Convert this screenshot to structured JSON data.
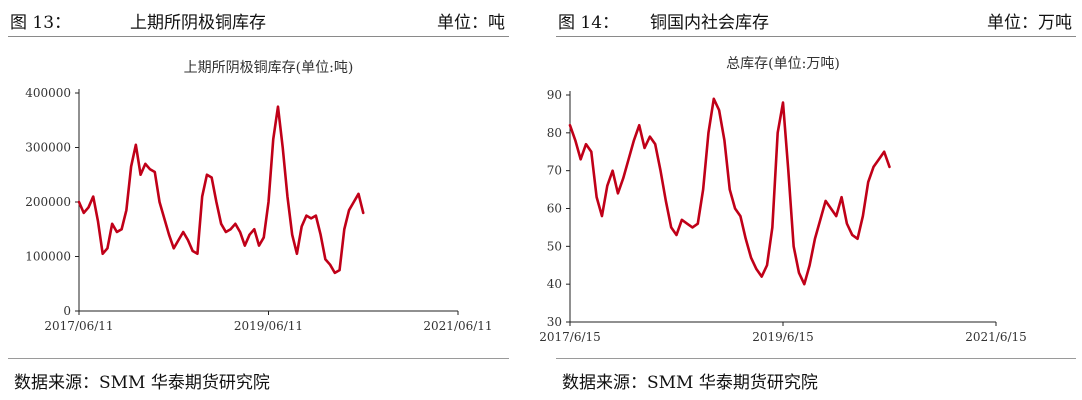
{
  "left": {
    "fig_label": "图 13：",
    "fig_title": "上期所阴极铜库存",
    "unit_label": "单位：吨",
    "source": "数据来源：SMM 华泰期货研究院",
    "chart_data": {
      "type": "line",
      "title": "上期所阴极铜库存(单位:吨)",
      "xlabel": "",
      "ylabel": "",
      "ylim": [
        0,
        400000
      ],
      "yticks": [
        0,
        100000,
        200000,
        300000,
        400000
      ],
      "ytick_labels": [
        "0",
        "100000",
        "200000",
        "300000",
        "400000"
      ],
      "xlim": [
        0,
        4
      ],
      "xticks": [
        0,
        2,
        4
      ],
      "xtick_labels": [
        "2017/06/11",
        "2019/06/11",
        "2021/06/11"
      ],
      "series": [
        {
          "name": "上期所阴极铜库存",
          "color": "#c00018",
          "x": [
            0,
            0.05,
            0.1,
            0.15,
            0.2,
            0.25,
            0.3,
            0.35,
            0.4,
            0.45,
            0.5,
            0.55,
            0.6,
            0.65,
            0.7,
            0.75,
            0.8,
            0.85,
            0.9,
            0.95,
            1.0,
            1.05,
            1.1,
            1.15,
            1.2,
            1.25,
            1.3,
            1.35,
            1.4,
            1.45,
            1.5,
            1.55,
            1.6,
            1.65,
            1.7,
            1.75,
            1.8,
            1.85,
            1.9,
            1.95,
            2.0,
            2.05,
            2.1,
            2.15,
            2.2,
            2.25,
            2.3,
            2.35,
            2.4,
            2.45,
            2.5,
            2.55,
            2.6,
            2.65,
            2.7,
            2.75,
            2.8,
            2.85,
            2.9,
            2.95,
            3.0,
            3.05,
            3.1,
            3.15,
            3.2,
            3.25,
            3.3,
            3.35,
            3.4,
            3.45,
            3.5,
            3.55,
            3.6,
            3.65,
            3.7,
            3.75,
            3.8,
            3.85,
            3.9,
            3.95,
            4.0
          ],
          "y": [
            200000,
            180000,
            190000,
            210000,
            165000,
            105000,
            115000,
            160000,
            145000,
            150000,
            185000,
            265000,
            305000,
            250000,
            270000,
            260000,
            255000,
            200000,
            170000,
            140000,
            115000,
            130000,
            145000,
            130000,
            110000,
            105000,
            210000,
            250000,
            245000,
            200000,
            160000,
            145000,
            150000,
            160000,
            145000,
            120000,
            140000,
            150000,
            120000,
            135000,
            200000,
            315000,
            375000,
            300000,
            210000,
            140000,
            105000,
            155000,
            175000,
            170000,
            175000,
            140000,
            95000,
            85000,
            70000,
            75000,
            150000,
            185000,
            200000,
            215000,
            180000,
            null,
            null,
            null,
            null,
            null,
            null,
            null,
            null,
            null,
            null,
            null,
            null,
            null,
            null,
            null,
            null,
            null,
            null,
            null,
            null
          ]
        }
      ]
    }
  },
  "right": {
    "fig_label": "图 14：",
    "fig_title": "铜国内社会库存",
    "unit_label": "单位：万吨",
    "source": "数据来源：SMM 华泰期货研究院",
    "chart_data": {
      "type": "line",
      "title": "总库存(单位:万吨)",
      "xlabel": "",
      "ylabel": "",
      "ylim": [
        30,
        90
      ],
      "yticks": [
        30,
        40,
        50,
        60,
        70,
        80,
        90
      ],
      "ytick_labels": [
        "30",
        "40",
        "50",
        "60",
        "70",
        "80",
        "90"
      ],
      "xlim": [
        0,
        4
      ],
      "xticks": [
        0,
        2,
        4
      ],
      "xtick_labels": [
        "2017/6/15",
        "2019/6/15",
        "2021/6/15"
      ],
      "series": [
        {
          "name": "总库存",
          "color": "#c00018",
          "x": [
            0,
            0.05,
            0.1,
            0.15,
            0.2,
            0.25,
            0.3,
            0.35,
            0.4,
            0.45,
            0.5,
            0.55,
            0.6,
            0.65,
            0.7,
            0.75,
            0.8,
            0.85,
            0.9,
            0.95,
            1.0,
            1.05,
            1.1,
            1.15,
            1.2,
            1.25,
            1.3,
            1.35,
            1.4,
            1.45,
            1.5,
            1.55,
            1.6,
            1.65,
            1.7,
            1.75,
            1.8,
            1.85,
            1.9,
            1.95,
            2.0,
            2.05,
            2.1,
            2.15,
            2.2,
            2.25,
            2.3,
            2.35,
            2.4,
            2.45,
            2.5,
            2.55,
            2.6,
            2.65,
            2.7,
            2.75,
            2.8,
            2.85,
            2.9,
            2.95,
            3.0,
            3.05,
            3.1,
            3.15,
            3.2,
            3.25,
            3.3,
            3.35,
            3.4,
            3.45,
            3.5,
            3.55,
            3.6,
            3.65,
            3.7,
            3.75,
            3.8,
            3.85,
            3.9,
            3.95,
            4.0
          ],
          "y": [
            82,
            78,
            73,
            77,
            75,
            63,
            58,
            66,
            70,
            64,
            68,
            73,
            78,
            82,
            76,
            79,
            77,
            70,
            62,
            55,
            53,
            57,
            56,
            55,
            56,
            65,
            80,
            89,
            86,
            78,
            65,
            60,
            58,
            52,
            47,
            44,
            42,
            45,
            55,
            80,
            88,
            70,
            50,
            43,
            40,
            45,
            52,
            57,
            62,
            60,
            58,
            63,
            56,
            53,
            52,
            58,
            67,
            71,
            73,
            75,
            71,
            null,
            null,
            null,
            null,
            null,
            null,
            null,
            null,
            null,
            null,
            null,
            null,
            null,
            null,
            null,
            null,
            null,
            null,
            null,
            null
          ]
        }
      ]
    }
  }
}
